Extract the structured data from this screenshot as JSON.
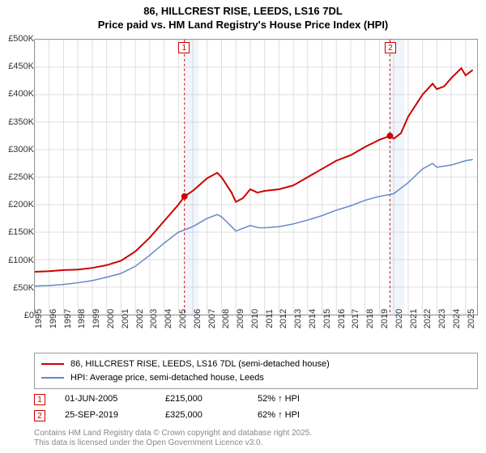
{
  "title_line1": "86, HILLCREST RISE, LEEDS, LS16 7DL",
  "title_line2": "Price paid vs. HM Land Registry's House Price Index (HPI)",
  "chart": {
    "type": "line",
    "background_color": "#ffffff",
    "grid_color": "#dddddd",
    "border_color": "#999999",
    "xlim_years": [
      1995,
      2025.8
    ],
    "ylim": [
      0,
      500000
    ],
    "ytick_step": 50000,
    "yticks": [
      "£0",
      "£50K",
      "£100K",
      "£150K",
      "£200K",
      "£250K",
      "£300K",
      "£350K",
      "£400K",
      "£450K",
      "£500K"
    ],
    "xticks": [
      "1995",
      "1996",
      "1997",
      "1998",
      "1999",
      "2000",
      "2001",
      "2002",
      "2003",
      "2004",
      "2005",
      "2006",
      "2007",
      "2008",
      "2009",
      "2010",
      "2011",
      "2012",
      "2013",
      "2014",
      "2015",
      "2016",
      "2017",
      "2018",
      "2019",
      "2020",
      "2021",
      "2022",
      "2023",
      "2024",
      "2025"
    ],
    "shaded_bands": [
      {
        "x_start": 2005.42,
        "x_end": 2006.42,
        "color": "rgba(130,170,230,0.12)"
      },
      {
        "x_start": 2019.73,
        "x_end": 2020.73,
        "color": "rgba(130,170,230,0.12)"
      }
    ],
    "vlines": [
      {
        "x": 2005.42,
        "label": "1"
      },
      {
        "x": 2019.73,
        "label": "2"
      }
    ],
    "series": [
      {
        "name": "price_paid",
        "label": "86, HILLCREST RISE, LEEDS, LS16 7DL (semi-detached house)",
        "color": "#cc0000",
        "line_width": 2,
        "points": [
          [
            1995,
            78000
          ],
          [
            1996,
            79000
          ],
          [
            1997,
            81000
          ],
          [
            1998,
            82000
          ],
          [
            1999,
            85000
          ],
          [
            2000,
            90000
          ],
          [
            2001,
            98000
          ],
          [
            2002,
            115000
          ],
          [
            2003,
            140000
          ],
          [
            2004,
            170000
          ],
          [
            2005,
            200000
          ],
          [
            2005.42,
            215000
          ],
          [
            2006,
            225000
          ],
          [
            2007,
            248000
          ],
          [
            2007.7,
            258000
          ],
          [
            2008,
            250000
          ],
          [
            2008.7,
            222000
          ],
          [
            2009,
            205000
          ],
          [
            2009.5,
            212000
          ],
          [
            2010,
            228000
          ],
          [
            2010.5,
            222000
          ],
          [
            2011,
            225000
          ],
          [
            2012,
            228000
          ],
          [
            2013,
            235000
          ],
          [
            2014,
            250000
          ],
          [
            2015,
            265000
          ],
          [
            2016,
            280000
          ],
          [
            2017,
            290000
          ],
          [
            2018,
            305000
          ],
          [
            2019,
            318000
          ],
          [
            2019.73,
            325000
          ],
          [
            2020,
            320000
          ],
          [
            2020.5,
            330000
          ],
          [
            2021,
            360000
          ],
          [
            2022,
            400000
          ],
          [
            2022.7,
            420000
          ],
          [
            2023,
            410000
          ],
          [
            2023.5,
            415000
          ],
          [
            2024,
            430000
          ],
          [
            2024.7,
            448000
          ],
          [
            2025,
            435000
          ],
          [
            2025.5,
            445000
          ]
        ],
        "markers": [
          {
            "x": 2005.42,
            "y": 215000
          },
          {
            "x": 2019.73,
            "y": 325000
          }
        ]
      },
      {
        "name": "hpi",
        "label": "HPI: Average price, semi-detached house, Leeds",
        "color": "#6388c4",
        "line_width": 1.5,
        "points": [
          [
            1995,
            52000
          ],
          [
            1996,
            53000
          ],
          [
            1997,
            55000
          ],
          [
            1998,
            58000
          ],
          [
            1999,
            62000
          ],
          [
            2000,
            68000
          ],
          [
            2001,
            75000
          ],
          [
            2002,
            88000
          ],
          [
            2003,
            108000
          ],
          [
            2004,
            130000
          ],
          [
            2005,
            150000
          ],
          [
            2006,
            160000
          ],
          [
            2007,
            175000
          ],
          [
            2007.7,
            182000
          ],
          [
            2008,
            178000
          ],
          [
            2008.7,
            160000
          ],
          [
            2009,
            152000
          ],
          [
            2010,
            162000
          ],
          [
            2010.6,
            158000
          ],
          [
            2011,
            158000
          ],
          [
            2012,
            160000
          ],
          [
            2013,
            165000
          ],
          [
            2014,
            172000
          ],
          [
            2015,
            180000
          ],
          [
            2016,
            190000
          ],
          [
            2017,
            198000
          ],
          [
            2018,
            208000
          ],
          [
            2019,
            215000
          ],
          [
            2020,
            220000
          ],
          [
            2021,
            240000
          ],
          [
            2022,
            265000
          ],
          [
            2022.7,
            275000
          ],
          [
            2023,
            268000
          ],
          [
            2024,
            272000
          ],
          [
            2025,
            280000
          ],
          [
            2025.5,
            282000
          ]
        ]
      }
    ]
  },
  "legend": {
    "items": [
      {
        "color": "#cc0000",
        "label": "86, HILLCREST RISE, LEEDS, LS16 7DL (semi-detached house)"
      },
      {
        "color": "#6388c4",
        "label": "HPI: Average price, semi-detached house, Leeds"
      }
    ]
  },
  "events": [
    {
      "marker": "1",
      "date": "01-JUN-2005",
      "price": "£215,000",
      "pct": "52% ↑ HPI"
    },
    {
      "marker": "2",
      "date": "25-SEP-2019",
      "price": "£325,000",
      "pct": "62% ↑ HPI"
    }
  ],
  "footer_line1": "Contains HM Land Registry data © Crown copyright and database right 2025.",
  "footer_line2": "This data is licensed under the Open Government Licence v3.0."
}
